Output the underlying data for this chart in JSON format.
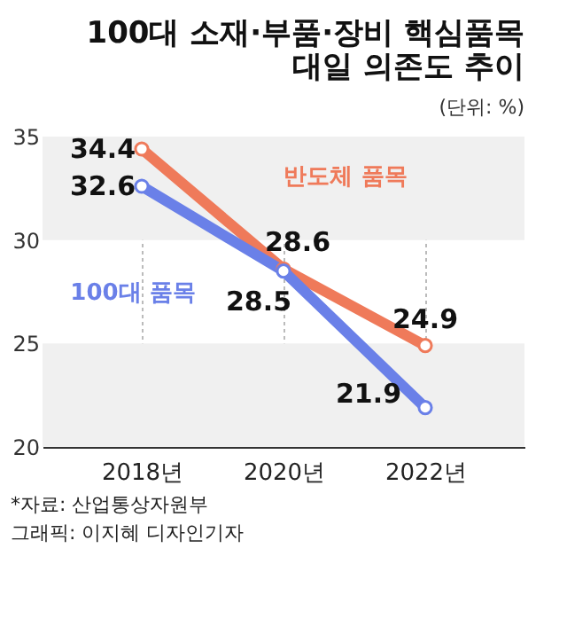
{
  "chart_data": {
    "type": "line",
    "title": "100대 소재·부품·장비 핵심품목\n대일 의존도 추이",
    "subtitle": "(단위: %)",
    "categories": [
      "2018년",
      "2020년",
      "2022년"
    ],
    "series": [
      {
        "name": "반도체 품목",
        "color": "#ef7a5a",
        "values": [
          34.4,
          28.6,
          24.9
        ]
      },
      {
        "name": "100대 품목",
        "color": "#6a80e8",
        "values": [
          32.6,
          28.5,
          21.9
        ]
      }
    ],
    "ylim": [
      20,
      35
    ],
    "yticks": [
      20,
      25,
      30,
      35
    ],
    "grid": true,
    "marker": "circle",
    "data_labels": true,
    "annotations": [
      "*자료: 산업통상자원부",
      "그래픽: 이지혜 디자인기자"
    ]
  }
}
